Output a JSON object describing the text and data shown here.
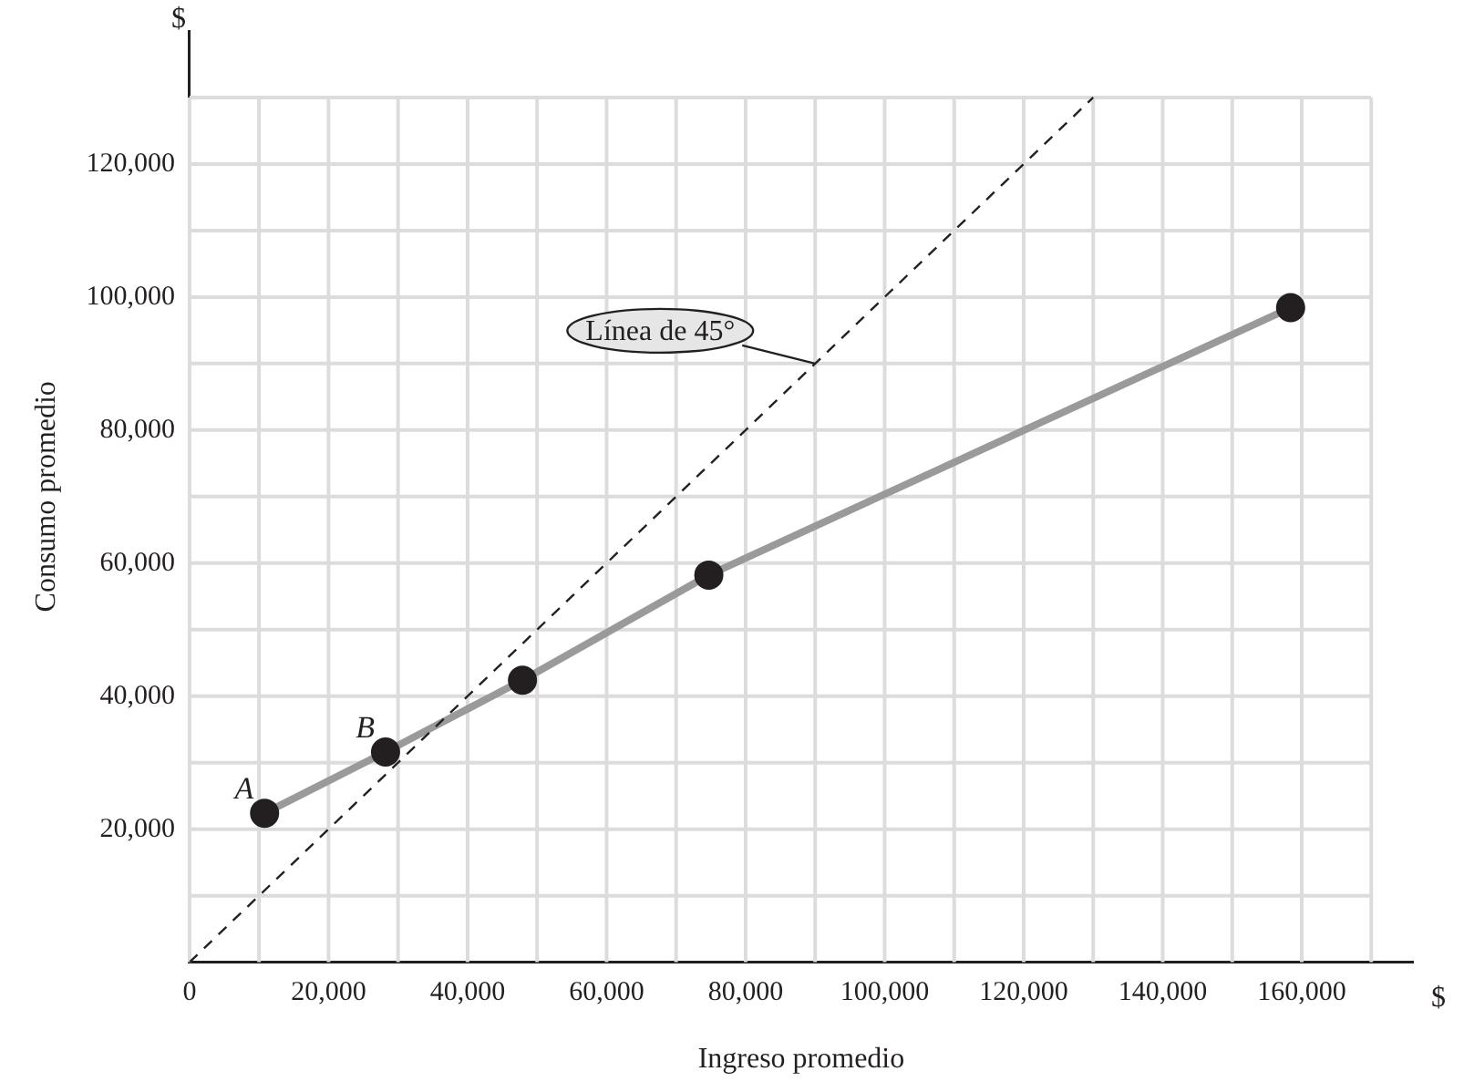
{
  "chart_data": {
    "type": "line",
    "xlabel": "Ingreso promedio",
    "ylabel": "Consumo promedio",
    "xlim": [
      0,
      176000
    ],
    "ylim": [
      0,
      140000
    ],
    "xticks": [
      0,
      {
        "value": 10000,
        "label": null
      },
      {
        "value": 20000,
        "label": "20,000"
      },
      {
        "value": 30000,
        "label": null
      },
      {
        "value": 40000,
        "label": "40,000"
      },
      {
        "value": 50000,
        "label": null
      },
      {
        "value": 60000,
        "label": "60,000"
      },
      {
        "value": 70000,
        "label": null
      },
      {
        "value": 80000,
        "label": "80,000"
      },
      {
        "value": 90000,
        "label": null
      },
      {
        "value": 100000,
        "label": "100,000"
      },
      {
        "value": 110000,
        "label": null
      },
      {
        "value": 120000,
        "label": "120,000"
      },
      {
        "value": 130000,
        "label": null
      },
      {
        "value": 140000,
        "label": "140,000"
      },
      {
        "value": 150000,
        "label": null
      },
      {
        "value": 160000,
        "label": "160,000"
      },
      {
        "value": 170000,
        "label": null
      }
    ],
    "yticks": [
      {
        "value": 10000,
        "label": null
      },
      {
        "value": 20000,
        "label": "20,000"
      },
      {
        "value": 30000,
        "label": null
      },
      {
        "value": 40000,
        "label": "40,000"
      },
      {
        "value": 50000,
        "label": null
      },
      {
        "value": 60000,
        "label": "60,000"
      },
      {
        "value": 70000,
        "label": null
      },
      {
        "value": 80000,
        "label": "80,000"
      },
      {
        "value": 90000,
        "label": null
      },
      {
        "value": 100000,
        "label": "100,000"
      },
      {
        "value": 110000,
        "label": null
      },
      {
        "value": 120000,
        "label": "120,000"
      },
      {
        "value": 130000,
        "label": null
      }
    ],
    "grid": true,
    "legend": false,
    "series": [
      {
        "type": "line",
        "color": "#222222",
        "line_style": "dashed",
        "marker": "none",
        "x": [
          0,
          130000
        ],
        "values": [
          0,
          130000
        ]
      },
      {
        "type": "line",
        "color": "#9a9a9a",
        "colors": [
          "#231f20",
          "#231f20",
          "#231f20",
          "#231f20",
          "#231f20"
        ],
        "line_style": "solid",
        "marker": "circle",
        "x": [
          10800,
          28200,
          47900,
          74700,
          158400
        ],
        "values": [
          22400,
          31600,
          42400,
          58200,
          98400
        ]
      }
    ],
    "annotations": [
      {
        "text": "A",
        "x": 10800,
        "y": 22400
      },
      {
        "text": "B",
        "x": 28200,
        "y": 31600
      },
      {
        "text": "Línea de 45°",
        "x": 90000,
        "y": 90000
      },
      "$",
      "$"
    ]
  }
}
